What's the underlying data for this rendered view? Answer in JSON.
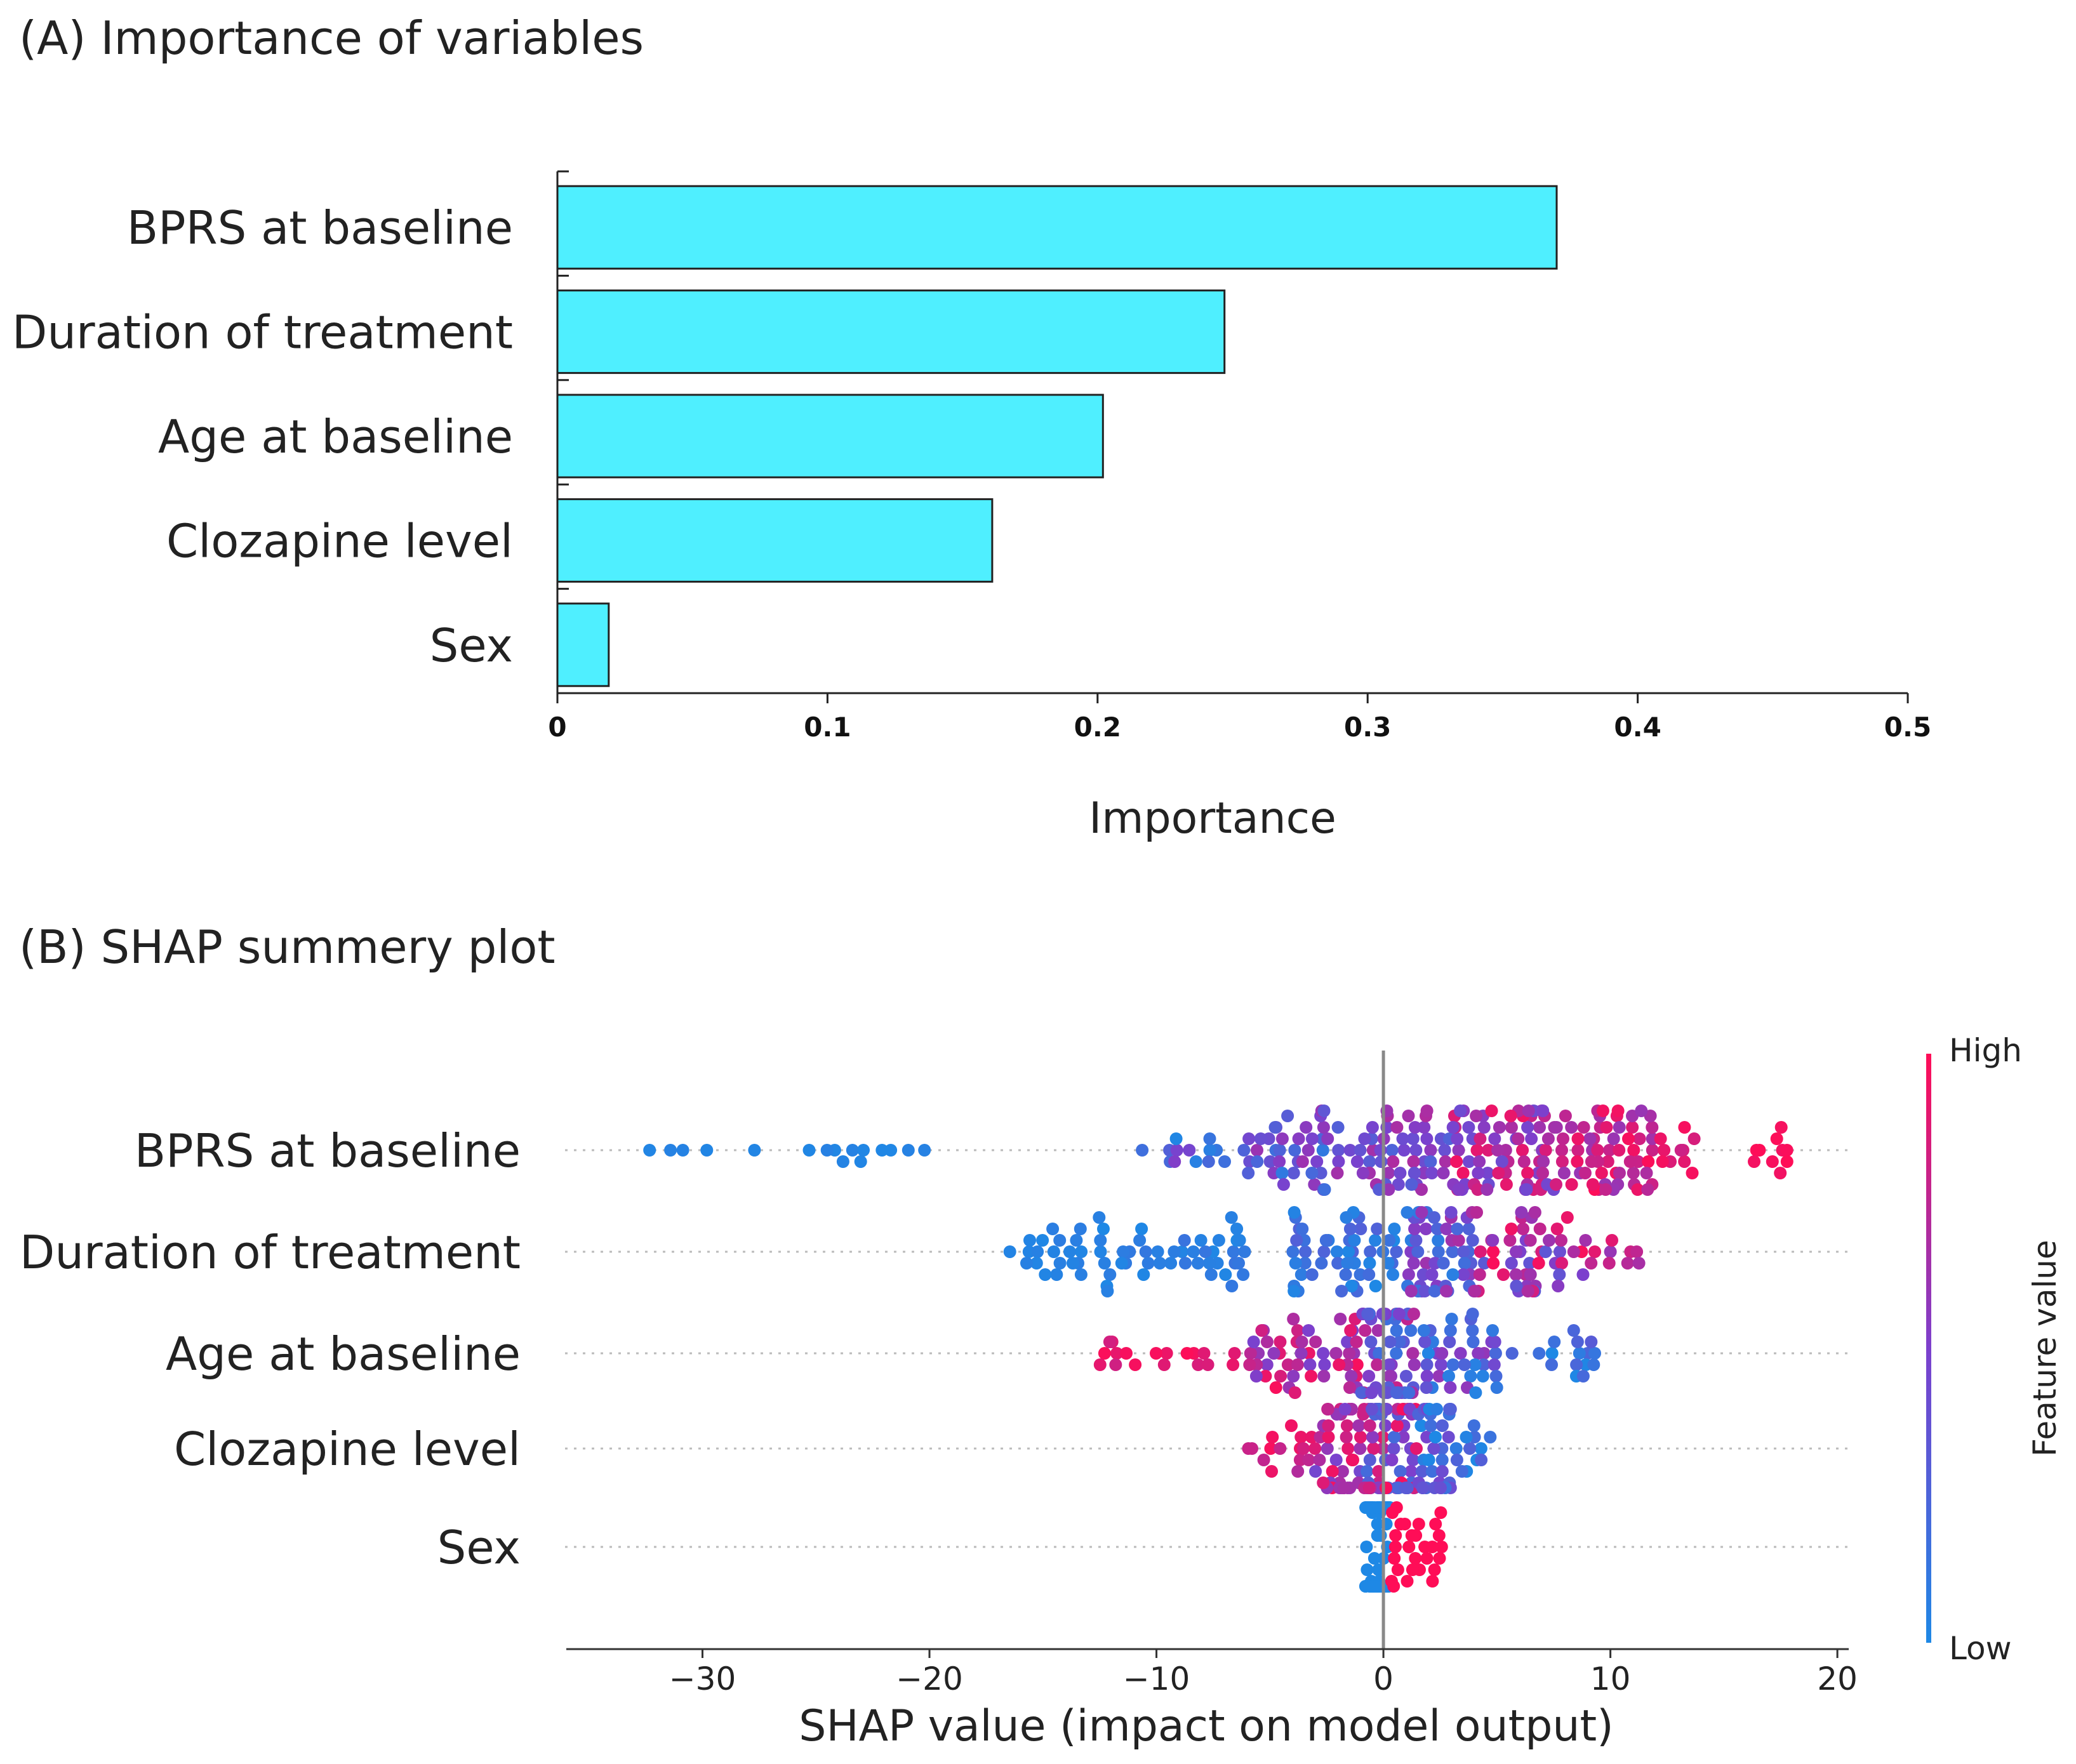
{
  "panel_a_title": "(A) Importance of variables",
  "panel_b_title": "(B) SHAP summery plot",
  "colors": {
    "bar_fill": "#4FEFFF",
    "bar_stroke": "#222222",
    "low": "#1E88E5",
    "high": "#FF0D57"
  },
  "chart_data": [
    {
      "type": "bar",
      "orientation": "horizontal",
      "title": "(A) Importance of variables",
      "categories": [
        "BPRS at baseline",
        "Duration of treatment",
        "Age at baseline",
        "Clozapine level",
        "Sex"
      ],
      "values": [
        0.37,
        0.247,
        0.202,
        0.161,
        0.019
      ],
      "xlabel": "Importance",
      "ylabel": "",
      "xlim": [
        0,
        0.5
      ],
      "xticks": [
        "0",
        "0.1",
        "0.2",
        "0.3",
        "0.4",
        "0.5"
      ]
    },
    {
      "type": "scatter",
      "subtype": "beeswarm",
      "title": "(B) SHAP summery plot",
      "categories": [
        "BPRS at baseline",
        "Duration of treatment",
        "Age at baseline",
        "Clozapine level",
        "Sex"
      ],
      "xlabel": "SHAP value (impact on model output)",
      "xlim": [
        -36,
        20.5
      ],
      "xticks": [
        "−30",
        "−20",
        "−10",
        "0",
        "10",
        "20"
      ],
      "tick_values": [
        -30,
        -20,
        -10,
        0,
        10,
        20
      ],
      "colorbar": {
        "label": "Feature value",
        "high": "High",
        "low": "Low"
      },
      "series": [
        {
          "name": "BPRS at baseline",
          "distribution": [
            {
              "from": -34,
              "to": -19,
              "n": 16,
              "fv": [
                0.0,
                0.05
              ]
            },
            {
              "from": -11.5,
              "to": -6,
              "n": 14,
              "fv": [
                0.0,
                0.55
              ]
            },
            {
              "from": -6,
              "to": -1,
              "n": 46,
              "fv": [
                0.1,
                0.65
              ]
            },
            {
              "from": -1,
              "to": 3,
              "n": 48,
              "fv": [
                0.25,
                0.7
              ]
            },
            {
              "from": 3,
              "to": 8,
              "n": 80,
              "fv": [
                0.4,
                0.95
              ]
            },
            {
              "from": 8,
              "to": 12,
              "n": 56,
              "fv": [
                0.6,
                1.0
              ]
            },
            {
              "from": 12,
              "to": 14,
              "n": 10,
              "fv": [
                0.8,
                1.0
              ]
            },
            {
              "from": 16,
              "to": 18,
              "n": 10,
              "fv": [
                0.95,
                1.0
              ]
            }
          ]
        },
        {
          "name": "Duration of treatment",
          "distribution": [
            {
              "from": -16.5,
              "to": -12,
              "n": 28,
              "fv": [
                0.0,
                0.08
              ]
            },
            {
              "from": -12,
              "to": -6,
              "n": 36,
              "fv": [
                0.0,
                0.15
              ]
            },
            {
              "from": -4,
              "to": 1,
              "n": 52,
              "fv": [
                0.0,
                0.3
              ]
            },
            {
              "from": 1,
              "to": 4,
              "n": 56,
              "fv": [
                0.05,
                0.7
              ]
            },
            {
              "from": 4,
              "to": 8,
              "n": 46,
              "fv": [
                0.3,
                1.0
              ]
            },
            {
              "from": 8,
              "to": 11.5,
              "n": 14,
              "fv": [
                0.5,
                1.0
              ]
            }
          ]
        },
        {
          "name": "Age at baseline",
          "distribution": [
            {
              "from": -12.5,
              "to": -6,
              "n": 18,
              "fv": [
                0.8,
                1.0
              ]
            },
            {
              "from": -6,
              "to": -1,
              "n": 50,
              "fv": [
                0.45,
                1.0
              ]
            },
            {
              "from": -1,
              "to": 1.5,
              "n": 62,
              "fv": [
                0.15,
                0.8
              ]
            },
            {
              "from": 1.5,
              "to": 5,
              "n": 40,
              "fv": [
                0.0,
                0.6
              ]
            },
            {
              "from": 5,
              "to": 10,
              "n": 16,
              "fv": [
                0.0,
                0.35
              ]
            }
          ]
        },
        {
          "name": "Clozapine level",
          "distribution": [
            {
              "from": -6,
              "to": -3,
              "n": 16,
              "fv": [
                0.7,
                1.0
              ]
            },
            {
              "from": -3,
              "to": -1,
              "n": 40,
              "fv": [
                0.45,
                1.0
              ]
            },
            {
              "from": -1,
              "to": 1.5,
              "n": 70,
              "fv": [
                0.2,
                1.0
              ]
            },
            {
              "from": 1.5,
              "to": 3,
              "n": 36,
              "fv": [
                0.0,
                0.5
              ]
            },
            {
              "from": 3,
              "to": 4.8,
              "n": 12,
              "fv": [
                0.0,
                0.3
              ]
            }
          ]
        },
        {
          "name": "Sex",
          "distribution": [
            {
              "from": -0.8,
              "to": 0.3,
              "n": 70,
              "fv": [
                0.0,
                0.0
              ]
            },
            {
              "from": 0.3,
              "to": 2.5,
              "n": 26,
              "fv": [
                1.0,
                1.0
              ]
            },
            {
              "from": 2.5,
              "to": 2.8,
              "n": 2,
              "fv": [
                1.0,
                1.0
              ]
            }
          ]
        }
      ]
    }
  ]
}
